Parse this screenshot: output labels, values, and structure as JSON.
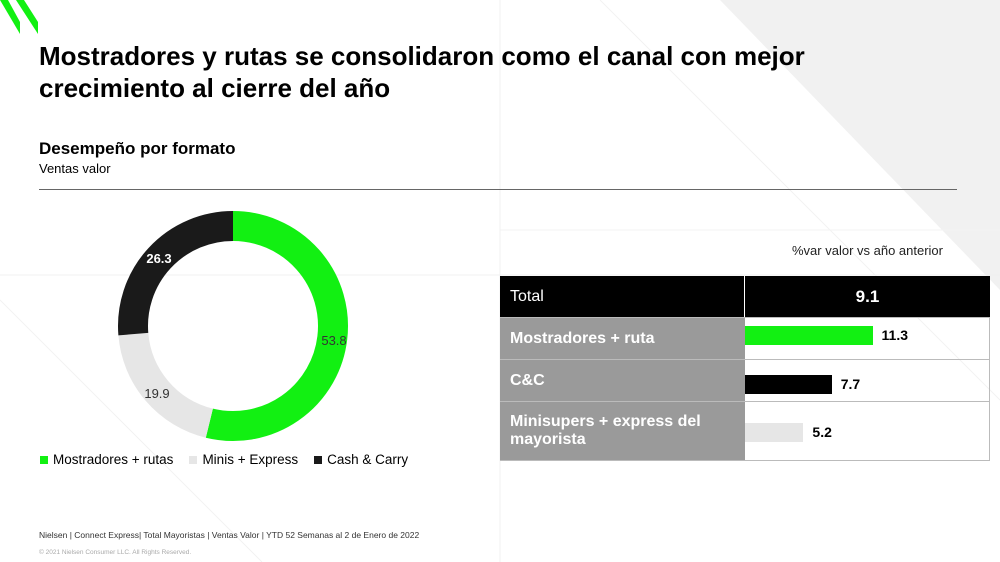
{
  "title": "Mostradores y rutas se consolidaron como el canal con mejor crecimiento al cierre del año",
  "subtitle": "Desempeño por formato",
  "subsubtitle": "Ventas valor",
  "colors": {
    "green": "#12f012",
    "light_gray": "#e6e6e6",
    "dark": "#1a1a1a",
    "row_gray": "#9a9a9a"
  },
  "chart_data": [
    {
      "type": "pie",
      "style": "donut",
      "slices": [
        {
          "name": "Mostradores + rutas",
          "value": 53.8,
          "label": "53.8",
          "color": "#12f012"
        },
        {
          "name": "Minis + Express",
          "value": 19.9,
          "label": "19.9",
          "color": "#e6e6e6"
        },
        {
          "name": "Cash & Carry",
          "value": 26.3,
          "label": "26.3",
          "color": "#1a1a1a"
        }
      ],
      "legend": [
        "Mostradores + rutas",
        "Minis + Express",
        "Cash & Carry"
      ],
      "legend_position": "bottom"
    },
    {
      "type": "bar",
      "orientation": "horizontal",
      "header": "%var valor vs año anterior",
      "total": {
        "label": "Total",
        "value": "9.1"
      },
      "categories": [
        "Mostradores + ruta",
        "C&C",
        "Minisupers + express del mayorista"
      ],
      "values": [
        11.3,
        7.7,
        5.2
      ],
      "value_labels": [
        "11.3",
        "7.7",
        "5.2"
      ],
      "colors": [
        "#12f012",
        "#000000",
        "#e6e6e6"
      ]
    }
  ],
  "footer": "Nielsen | Connect Express| Total Mayoristas | Ventas Valor | YTD 52  Semanas al 2 de Enero de 2022",
  "copyright": "© 2021 Nielsen Consumer LLC. All Rights Reserved."
}
